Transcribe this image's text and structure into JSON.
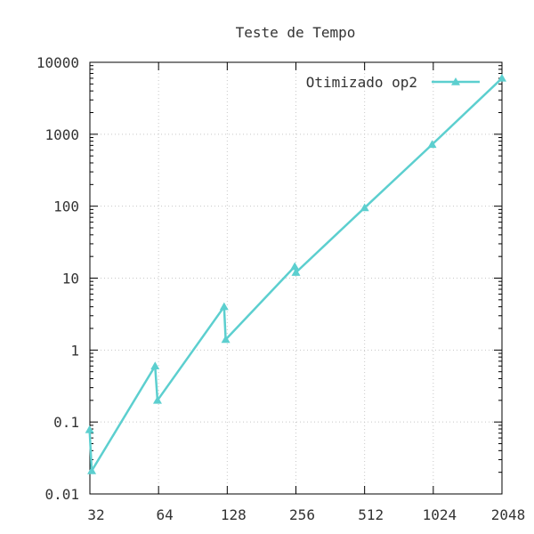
{
  "chart_data": {
    "type": "line",
    "title": "Teste de Tempo",
    "xlabel": "",
    "ylabel": "",
    "x_scale": "log2",
    "y_scale": "log10",
    "xlim": [
      32,
      2048
    ],
    "ylim": [
      0.01,
      10000
    ],
    "x_ticks": [
      32,
      64,
      128,
      256,
      512,
      1024,
      2048
    ],
    "x_tick_labels": [
      "32",
      "64",
      "128",
      "256",
      "512",
      "1024",
      "2048"
    ],
    "y_ticks": [
      0.01,
      0.1,
      1,
      10,
      100,
      1000,
      10000
    ],
    "y_tick_labels": [
      "0.01",
      "0.1",
      "1",
      "10",
      "100",
      "1000",
      "10000"
    ],
    "grid": true,
    "legend_position": "top-right",
    "series": [
      {
        "name": "Otimizado op2",
        "color": "#5ccfcf",
        "marker": "triangle",
        "x": [
          31.9,
          32.6,
          61.8,
          63.3,
          124.0,
          126.0,
          253.0,
          256.0,
          512.0,
          1012.0,
          2048.0
        ],
        "y": [
          0.078,
          0.021,
          0.6,
          0.2,
          4.0,
          1.4,
          14.5,
          12.0,
          95.0,
          720.0,
          6000.0
        ]
      }
    ]
  }
}
